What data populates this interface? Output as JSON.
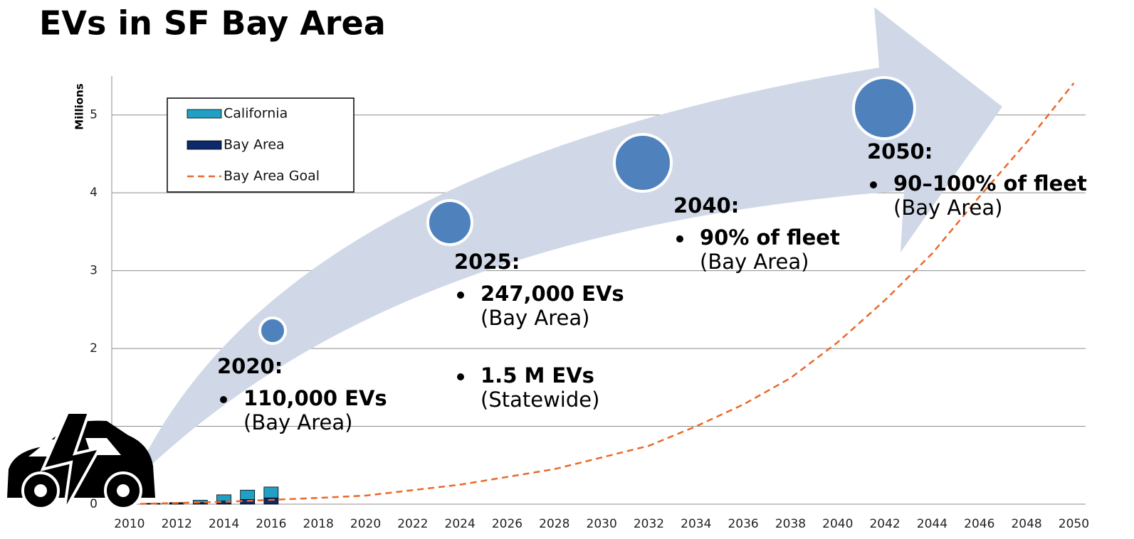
{
  "chart_data": {
    "type": "stacked_bar_line",
    "title": "EVs in SF Bay Area",
    "y_label": "Millions",
    "xlim": [
      2009.25,
      2050.5
    ],
    "xticks": [
      2010,
      2012,
      2014,
      2016,
      2018,
      2020,
      2022,
      2024,
      2026,
      2028,
      2030,
      2032,
      2034,
      2036,
      2038,
      2040,
      2042,
      2044,
      2046,
      2048,
      2050
    ],
    "ylim": [
      0,
      5.5
    ],
    "yticks": [
      0,
      1,
      2,
      3,
      4,
      5
    ],
    "grid": true,
    "bar_x": [
      2011,
      2012,
      2013,
      2014,
      2015,
      2016
    ],
    "series": [
      {
        "name": "Bay Area",
        "color": "#0b2a6b",
        "values": [
          0.003,
          0.01,
          0.02,
          0.04,
          0.06,
          0.08
        ]
      },
      {
        "name": "California",
        "color": "#1fa0c4",
        "values": [
          0.007,
          0.01,
          0.03,
          0.08,
          0.12,
          0.14
        ]
      }
    ],
    "line": {
      "name": "Bay Area Goal",
      "color": "#e8692b",
      "x": [
        2010,
        2014,
        2018,
        2020,
        2024,
        2028,
        2032,
        2034,
        2036,
        2038,
        2040,
        2042,
        2044,
        2046,
        2048,
        2050
      ],
      "values": [
        0,
        0.03,
        0.08,
        0.11,
        0.25,
        0.45,
        0.75,
        1.0,
        1.28,
        1.62,
        2.08,
        2.62,
        3.22,
        3.95,
        4.65,
        5.41
      ]
    },
    "annotations": [
      {
        "heading": "2020:",
        "items": [
          {
            "bold": "110,000 EVs",
            "note": "(Bay Area)"
          }
        ]
      },
      {
        "heading": "2025:",
        "items": [
          {
            "bold": "247,000 EVs",
            "note": "(Bay Area)"
          },
          {
            "bold": "1.5 M EVs",
            "note": "(Statewide)"
          }
        ]
      },
      {
        "heading": "2040:",
        "items": [
          {
            "bold": "90% of fleet",
            "note": "(Bay Area)"
          }
        ]
      },
      {
        "heading": "2050:",
        "items": [
          {
            "bold": "90–100% of fleet",
            "note": "(Bay Area)"
          }
        ]
      }
    ]
  }
}
